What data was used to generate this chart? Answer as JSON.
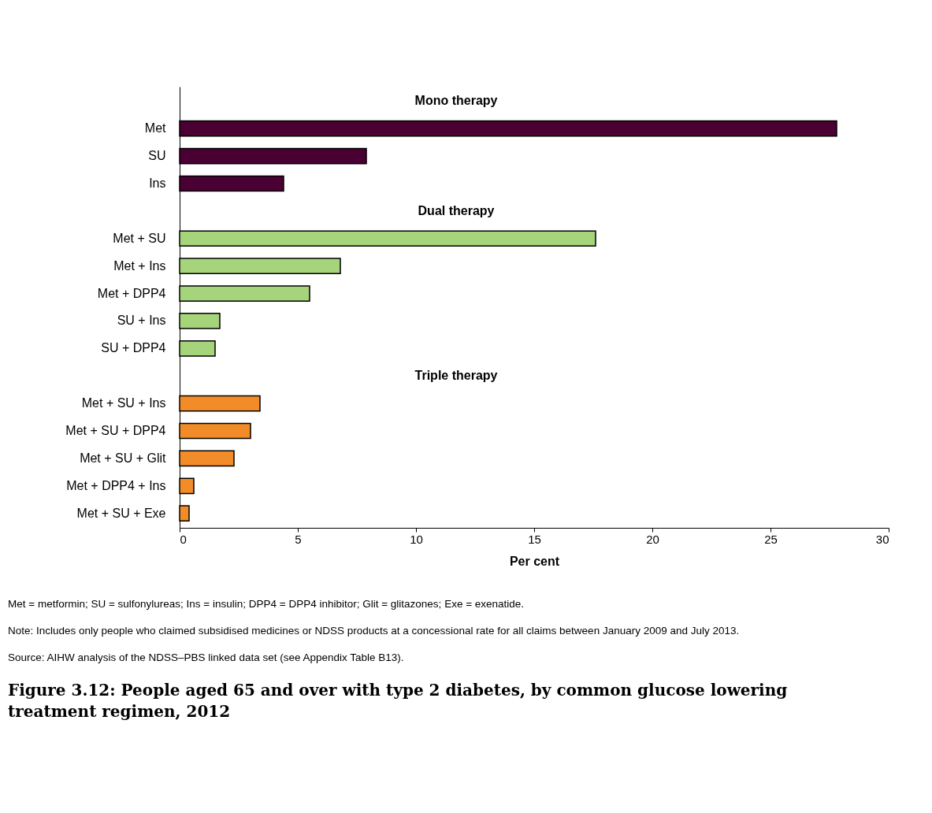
{
  "chart_data": {
    "type": "bar",
    "orientation": "horizontal",
    "title": "Figure 3.12: People aged 65 and over with type 2 diabetes, by common glucose lowering treatment regimen, 2012",
    "xlabel": "Per cent",
    "categories": [
      "Mono therapy",
      "Met",
      "SU",
      "Ins",
      "Dual therapy",
      "Met + SU",
      "Met + Ins",
      "Met + DPP4",
      "SU + Ins",
      "SU + DPP4",
      "Triple therapy",
      "Met + SU + Ins",
      "Met + SU + DPP4",
      "Met + SU + Glit",
      "Met + DPP4 + Ins",
      "Met + SU + Exe"
    ],
    "values": [
      null,
      27.8,
      7.9,
      4.4,
      null,
      17.6,
      6.8,
      5.5,
      1.7,
      1.5,
      null,
      3.4,
      3.0,
      2.3,
      0.6,
      0.4
    ],
    "colors": [
      null,
      "#4b0033",
      "#4b0033",
      "#4b0033",
      null,
      "#a6d47a",
      "#a6d47a",
      "#a6d47a",
      "#a6d47a",
      "#a6d47a",
      null,
      "#f28c28",
      "#f28c28",
      "#f28c28",
      "#f28c28",
      "#f28c28"
    ],
    "xlim": [
      0,
      30
    ],
    "xticks": [
      0,
      5,
      10,
      15,
      20,
      25,
      30
    ],
    "grid": false,
    "annotations": [
      "Met = metformin; SU = sulfonylureas; Ins = insulin; DPP4 = DPP4 inhibitor; Glit = glitazones; Exe = exenatide.",
      "Note: Includes only people who claimed subsidised medicines or NDSS products at a concessional rate for all claims between January 2009 and July 2013.",
      "Source: AIHW analysis of the NDSS–PBS linked data set (see Appendix Table B13)."
    ]
  }
}
